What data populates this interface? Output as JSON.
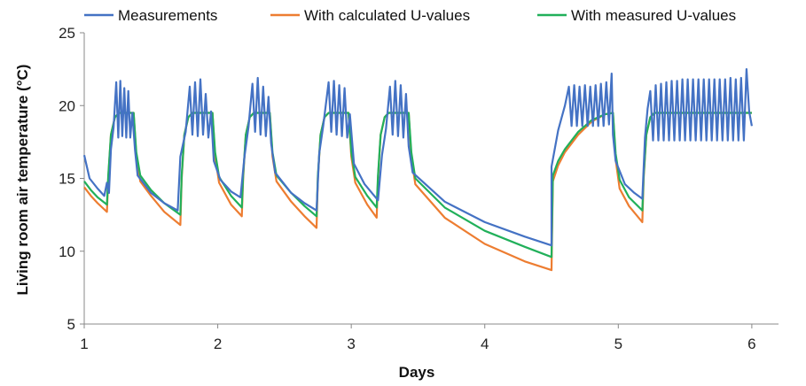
{
  "chart_data": {
    "type": "line",
    "title": "",
    "xlabel": "Days",
    "ylabel": "Living room air temperature (°C)",
    "xlim": [
      1,
      6.2
    ],
    "ylim": [
      5,
      25
    ],
    "xticks": [
      1,
      2,
      3,
      4,
      5,
      6
    ],
    "yticks": [
      5,
      10,
      15,
      20,
      25
    ],
    "legend": {
      "placement": "top"
    },
    "grid": false,
    "series": [
      {
        "name": "Measurements",
        "color": "#4472C4",
        "points": [
          [
            1.0,
            16.6
          ],
          [
            1.04,
            15.0
          ],
          [
            1.1,
            14.3
          ],
          [
            1.15,
            13.8
          ],
          [
            1.17,
            14.7
          ],
          [
            1.185,
            14.0
          ],
          [
            1.2,
            17.0
          ],
          [
            1.22,
            18.5
          ],
          [
            1.24,
            21.6
          ],
          [
            1.255,
            17.8
          ],
          [
            1.27,
            21.7
          ],
          [
            1.285,
            17.9
          ],
          [
            1.3,
            21.2
          ],
          [
            1.315,
            17.8
          ],
          [
            1.33,
            21.0
          ],
          [
            1.345,
            17.8
          ],
          [
            1.36,
            19.5
          ],
          [
            1.38,
            17.0
          ],
          [
            1.4,
            15.2
          ],
          [
            1.5,
            14.0
          ],
          [
            1.6,
            13.3
          ],
          [
            1.7,
            12.8
          ],
          [
            1.72,
            16.5
          ],
          [
            1.76,
            18.2
          ],
          [
            1.79,
            21.3
          ],
          [
            1.81,
            18.0
          ],
          [
            1.83,
            21.6
          ],
          [
            1.85,
            17.9
          ],
          [
            1.87,
            21.8
          ],
          [
            1.89,
            18.0
          ],
          [
            1.91,
            20.8
          ],
          [
            1.93,
            17.8
          ],
          [
            1.95,
            19.6
          ],
          [
            1.97,
            16.2
          ],
          [
            2.02,
            14.9
          ],
          [
            2.1,
            14.1
          ],
          [
            2.17,
            13.7
          ],
          [
            2.2,
            16.5
          ],
          [
            2.23,
            18.5
          ],
          [
            2.26,
            21.5
          ],
          [
            2.28,
            18.2
          ],
          [
            2.3,
            21.9
          ],
          [
            2.32,
            18.0
          ],
          [
            2.34,
            21.3
          ],
          [
            2.36,
            17.9
          ],
          [
            2.38,
            20.6
          ],
          [
            2.4,
            17.4
          ],
          [
            2.43,
            15.4
          ],
          [
            2.55,
            14.0
          ],
          [
            2.65,
            13.3
          ],
          [
            2.74,
            12.8
          ],
          [
            2.76,
            16.7
          ],
          [
            2.79,
            18.6
          ],
          [
            2.83,
            21.6
          ],
          [
            2.85,
            18.2
          ],
          [
            2.87,
            21.7
          ],
          [
            2.89,
            18.0
          ],
          [
            2.91,
            21.4
          ],
          [
            2.93,
            17.9
          ],
          [
            2.95,
            21.2
          ],
          [
            2.97,
            17.8
          ],
          [
            2.99,
            19.4
          ],
          [
            3.02,
            16.0
          ],
          [
            3.1,
            14.6
          ],
          [
            3.2,
            13.5
          ],
          [
            3.23,
            16.6
          ],
          [
            3.26,
            18.4
          ],
          [
            3.29,
            21.3
          ],
          [
            3.31,
            18.0
          ],
          [
            3.33,
            21.7
          ],
          [
            3.35,
            17.9
          ],
          [
            3.37,
            21.4
          ],
          [
            3.39,
            17.8
          ],
          [
            3.41,
            20.8
          ],
          [
            3.43,
            17.2
          ],
          [
            3.46,
            15.4
          ],
          [
            3.7,
            13.4
          ],
          [
            4.0,
            12.0
          ],
          [
            4.3,
            11.0
          ],
          [
            4.5,
            10.4
          ],
          [
            4.5,
            15.8
          ],
          [
            4.55,
            18.3
          ],
          [
            4.6,
            20.0
          ],
          [
            4.63,
            21.3
          ],
          [
            4.65,
            18.6
          ],
          [
            4.67,
            21.4
          ],
          [
            4.69,
            18.6
          ],
          [
            4.71,
            21.3
          ],
          [
            4.73,
            18.6
          ],
          [
            4.75,
            21.4
          ],
          [
            4.77,
            18.6
          ],
          [
            4.79,
            21.3
          ],
          [
            4.81,
            18.6
          ],
          [
            4.83,
            21.4
          ],
          [
            4.85,
            18.6
          ],
          [
            4.87,
            21.5
          ],
          [
            4.89,
            18.6
          ],
          [
            4.91,
            21.6
          ],
          [
            4.93,
            18.7
          ],
          [
            4.95,
            22.2
          ],
          [
            4.96,
            18.0
          ],
          [
            4.98,
            16.2
          ],
          [
            5.05,
            14.6
          ],
          [
            5.12,
            14.0
          ],
          [
            5.18,
            13.6
          ],
          [
            5.2,
            17.8
          ],
          [
            5.22,
            19.8
          ],
          [
            5.24,
            21.0
          ],
          [
            5.26,
            17.6
          ],
          [
            5.28,
            21.4
          ],
          [
            5.3,
            17.6
          ],
          [
            5.32,
            21.5
          ],
          [
            5.34,
            17.6
          ],
          [
            5.36,
            21.6
          ],
          [
            5.38,
            17.6
          ],
          [
            5.4,
            21.7
          ],
          [
            5.42,
            17.6
          ],
          [
            5.44,
            21.7
          ],
          [
            5.46,
            17.6
          ],
          [
            5.48,
            21.8
          ],
          [
            5.5,
            17.6
          ],
          [
            5.52,
            21.8
          ],
          [
            5.54,
            17.6
          ],
          [
            5.56,
            21.8
          ],
          [
            5.58,
            17.6
          ],
          [
            5.6,
            21.8
          ],
          [
            5.62,
            17.6
          ],
          [
            5.64,
            21.8
          ],
          [
            5.66,
            17.6
          ],
          [
            5.68,
            21.8
          ],
          [
            5.7,
            17.6
          ],
          [
            5.72,
            21.8
          ],
          [
            5.74,
            17.6
          ],
          [
            5.76,
            21.8
          ],
          [
            5.78,
            17.6
          ],
          [
            5.8,
            21.8
          ],
          [
            5.82,
            17.6
          ],
          [
            5.84,
            21.9
          ],
          [
            5.86,
            17.6
          ],
          [
            5.88,
            21.8
          ],
          [
            5.9,
            17.6
          ],
          [
            5.92,
            21.9
          ],
          [
            5.94,
            17.6
          ],
          [
            5.96,
            22.5
          ],
          [
            5.98,
            19.6
          ],
          [
            6.0,
            18.6
          ]
        ]
      },
      {
        "name": "With calculated U-values",
        "color": "#ED7D31",
        "points": [
          [
            1.0,
            14.4
          ],
          [
            1.05,
            13.8
          ],
          [
            1.1,
            13.3
          ],
          [
            1.17,
            12.7
          ],
          [
            1.18,
            15.0
          ],
          [
            1.2,
            18.0
          ],
          [
            1.23,
            19.2
          ],
          [
            1.26,
            19.5
          ],
          [
            1.37,
            19.5
          ],
          [
            1.39,
            16.5
          ],
          [
            1.42,
            14.8
          ],
          [
            1.5,
            13.8
          ],
          [
            1.6,
            12.7
          ],
          [
            1.72,
            11.8
          ],
          [
            1.73,
            15.0
          ],
          [
            1.75,
            18.0
          ],
          [
            1.78,
            19.2
          ],
          [
            1.81,
            19.5
          ],
          [
            1.96,
            19.5
          ],
          [
            1.98,
            16.5
          ],
          [
            2.01,
            14.7
          ],
          [
            2.1,
            13.2
          ],
          [
            2.18,
            12.4
          ],
          [
            2.19,
            15.0
          ],
          [
            2.21,
            18.0
          ],
          [
            2.24,
            19.2
          ],
          [
            2.27,
            19.5
          ],
          [
            2.39,
            19.5
          ],
          [
            2.41,
            16.5
          ],
          [
            2.44,
            14.8
          ],
          [
            2.55,
            13.4
          ],
          [
            2.65,
            12.4
          ],
          [
            2.74,
            11.6
          ],
          [
            2.75,
            15.0
          ],
          [
            2.77,
            18.0
          ],
          [
            2.8,
            19.2
          ],
          [
            2.83,
            19.5
          ],
          [
            2.98,
            19.5
          ],
          [
            3.0,
            16.5
          ],
          [
            3.03,
            14.7
          ],
          [
            3.12,
            13.2
          ],
          [
            3.19,
            12.3
          ],
          [
            3.2,
            15.0
          ],
          [
            3.22,
            18.0
          ],
          [
            3.25,
            19.2
          ],
          [
            3.28,
            19.5
          ],
          [
            3.43,
            19.5
          ],
          [
            3.45,
            16.4
          ],
          [
            3.48,
            14.6
          ],
          [
            3.7,
            12.3
          ],
          [
            4.0,
            10.5
          ],
          [
            4.3,
            9.3
          ],
          [
            4.5,
            8.7
          ],
          [
            4.51,
            14.8
          ],
          [
            4.55,
            15.9
          ],
          [
            4.6,
            16.8
          ],
          [
            4.7,
            18.0
          ],
          [
            4.8,
            18.9
          ],
          [
            4.9,
            19.4
          ],
          [
            4.96,
            19.5
          ],
          [
            4.98,
            16.3
          ],
          [
            5.01,
            14.3
          ],
          [
            5.08,
            13.1
          ],
          [
            5.18,
            12.0
          ],
          [
            5.19,
            15.0
          ],
          [
            5.21,
            18.0
          ],
          [
            5.24,
            19.2
          ],
          [
            5.27,
            19.5
          ],
          [
            6.0,
            19.5
          ]
        ]
      },
      {
        "name": "With measured U-values",
        "color": "#21B05A",
        "points": [
          [
            1.0,
            14.8
          ],
          [
            1.05,
            14.2
          ],
          [
            1.1,
            13.7
          ],
          [
            1.17,
            13.2
          ],
          [
            1.18,
            15.2
          ],
          [
            1.2,
            18.0
          ],
          [
            1.23,
            19.2
          ],
          [
            1.26,
            19.5
          ],
          [
            1.37,
            19.5
          ],
          [
            1.39,
            16.8
          ],
          [
            1.42,
            15.2
          ],
          [
            1.5,
            14.2
          ],
          [
            1.6,
            13.3
          ],
          [
            1.72,
            12.5
          ],
          [
            1.73,
            15.2
          ],
          [
            1.75,
            18.0
          ],
          [
            1.78,
            19.2
          ],
          [
            1.81,
            19.5
          ],
          [
            1.96,
            19.5
          ],
          [
            1.98,
            16.8
          ],
          [
            2.01,
            15.1
          ],
          [
            2.1,
            13.8
          ],
          [
            2.18,
            13.0
          ],
          [
            2.19,
            15.2
          ],
          [
            2.21,
            18.0
          ],
          [
            2.24,
            19.2
          ],
          [
            2.27,
            19.5
          ],
          [
            2.39,
            19.5
          ],
          [
            2.41,
            16.8
          ],
          [
            2.44,
            15.2
          ],
          [
            2.55,
            14.0
          ],
          [
            2.65,
            13.1
          ],
          [
            2.74,
            12.4
          ],
          [
            2.75,
            15.2
          ],
          [
            2.77,
            18.0
          ],
          [
            2.8,
            19.2
          ],
          [
            2.83,
            19.5
          ],
          [
            2.98,
            19.5
          ],
          [
            3.0,
            16.8
          ],
          [
            3.03,
            15.1
          ],
          [
            3.12,
            13.8
          ],
          [
            3.19,
            13.0
          ],
          [
            3.2,
            15.2
          ],
          [
            3.22,
            18.0
          ],
          [
            3.25,
            19.2
          ],
          [
            3.28,
            19.5
          ],
          [
            3.43,
            19.5
          ],
          [
            3.45,
            16.8
          ],
          [
            3.48,
            15.0
          ],
          [
            3.7,
            13.0
          ],
          [
            4.0,
            11.4
          ],
          [
            4.3,
            10.3
          ],
          [
            4.5,
            9.6
          ],
          [
            4.51,
            15.2
          ],
          [
            4.55,
            16.2
          ],
          [
            4.6,
            17.0
          ],
          [
            4.7,
            18.2
          ],
          [
            4.8,
            19.0
          ],
          [
            4.9,
            19.4
          ],
          [
            4.96,
            19.5
          ],
          [
            4.98,
            16.7
          ],
          [
            5.01,
            14.9
          ],
          [
            5.08,
            13.7
          ],
          [
            5.18,
            12.8
          ],
          [
            5.19,
            15.2
          ],
          [
            5.21,
            18.0
          ],
          [
            5.24,
            19.2
          ],
          [
            5.27,
            19.5
          ],
          [
            6.0,
            19.5
          ]
        ]
      }
    ]
  }
}
